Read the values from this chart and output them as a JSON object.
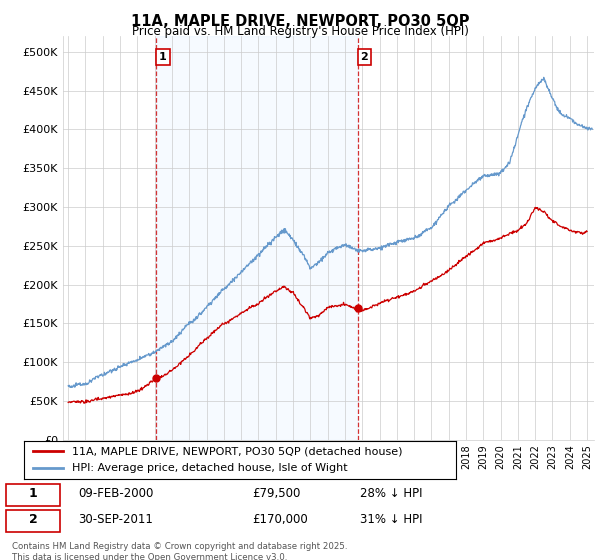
{
  "title": "11A, MAPLE DRIVE, NEWPORT, PO30 5QP",
  "subtitle": "Price paid vs. HM Land Registry's House Price Index (HPI)",
  "ylabel_ticks": [
    "£0",
    "£50K",
    "£100K",
    "£150K",
    "£200K",
    "£250K",
    "£300K",
    "£350K",
    "£400K",
    "£450K",
    "£500K"
  ],
  "ytick_values": [
    0,
    50000,
    100000,
    150000,
    200000,
    250000,
    300000,
    350000,
    400000,
    450000,
    500000
  ],
  "ylim": [
    0,
    520000
  ],
  "xlim_start": 1994.7,
  "xlim_end": 2025.4,
  "legend_entries": [
    "11A, MAPLE DRIVE, NEWPORT, PO30 5QP (detached house)",
    "HPI: Average price, detached house, Isle of Wight"
  ],
  "line_colors": [
    "#cc0000",
    "#6699cc"
  ],
  "shade_color": "#ddeeff",
  "marker1_x": 2000.1,
  "marker1_y": 79500,
  "marker1_label": "1",
  "marker2_x": 2011.75,
  "marker2_y": 170000,
  "marker2_label": "2",
  "vline1_x": 2000.1,
  "vline2_x": 2011.75,
  "annotation1": [
    "1",
    "09-FEB-2000",
    "£79,500",
    "28% ↓ HPI"
  ],
  "annotation2": [
    "2",
    "30-SEP-2011",
    "£170,000",
    "31% ↓ HPI"
  ],
  "footnote": "Contains HM Land Registry data © Crown copyright and database right 2025.\nThis data is licensed under the Open Government Licence v3.0.",
  "background_color": "#ffffff",
  "grid_color": "#cccccc",
  "hpi_key_x": [
    1995,
    1996,
    1997,
    1998,
    1999,
    2000,
    2001,
    2002,
    2003,
    2004,
    2005,
    2006,
    2007,
    2007.5,
    2008,
    2008.5,
    2009,
    2009.5,
    2010,
    2011,
    2012,
    2013,
    2014,
    2015,
    2016,
    2017,
    2018,
    2019,
    2020,
    2020.5,
    2021,
    2021.5,
    2022,
    2022.5,
    2023,
    2023.5,
    2024,
    2024.5,
    2025.3
  ],
  "hpi_key_y": [
    68000,
    72000,
    82000,
    92000,
    100000,
    110000,
    125000,
    148000,
    170000,
    195000,
    218000,
    242000,
    262000,
    272000,
    258000,
    242000,
    222000,
    228000,
    238000,
    248000,
    240000,
    242000,
    248000,
    258000,
    272000,
    300000,
    320000,
    340000,
    345000,
    360000,
    395000,
    430000,
    455000,
    468000,
    440000,
    420000,
    415000,
    405000,
    400000
  ],
  "price_key_x": [
    1995,
    1996,
    1997,
    1998,
    1999,
    2000.1,
    2000.5,
    2001,
    2002,
    2003,
    2004,
    2005,
    2006,
    2007,
    2007.5,
    2008,
    2008.5,
    2009,
    2009.5,
    2010,
    2010.5,
    2011,
    2011.75,
    2012,
    2012.5,
    2013,
    2014,
    2015,
    2016,
    2017,
    2018,
    2019,
    2020,
    2021,
    2021.5,
    2022,
    2022.5,
    2023,
    2023.5,
    2024,
    2024.5,
    2025
  ],
  "price_key_y": [
    48000,
    50000,
    54000,
    58000,
    63000,
    79500,
    82000,
    90000,
    108000,
    130000,
    152000,
    165000,
    175000,
    192000,
    198000,
    190000,
    175000,
    158000,
    162000,
    172000,
    175000,
    178000,
    170000,
    170000,
    175000,
    180000,
    188000,
    196000,
    208000,
    222000,
    240000,
    255000,
    262000,
    272000,
    280000,
    302000,
    295000,
    282000,
    275000,
    270000,
    268000,
    268000
  ]
}
